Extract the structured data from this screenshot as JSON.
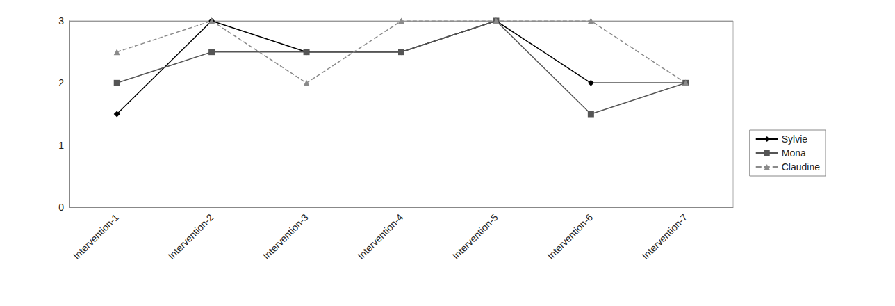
{
  "chart_data": {
    "type": "line",
    "categories": [
      "Intervention-1",
      "Intervention-2",
      "Intervention-3",
      "Intervention-4",
      "Intervention-5",
      "Intervention-6",
      "Intervention-7"
    ],
    "series": [
      {
        "name": "Sylvie",
        "color": "#000000",
        "marker": "diamond",
        "line_style": "solid",
        "values": [
          1.5,
          3,
          2.5,
          2.5,
          3,
          2,
          2
        ]
      },
      {
        "name": "Mona",
        "color": "#555555",
        "marker": "square",
        "line_style": "solid",
        "values": [
          2,
          2.5,
          2.5,
          2.5,
          3,
          1.5,
          2
        ]
      },
      {
        "name": "Claudine",
        "color": "#8a8a8a",
        "marker": "triangle",
        "line_style": "dashed",
        "values": [
          2.5,
          3,
          2,
          3,
          3,
          3,
          2
        ]
      }
    ],
    "ylim": [
      0,
      3
    ],
    "yticks": [
      0,
      1,
      2,
      3
    ],
    "grid": true,
    "legend": "right"
  }
}
